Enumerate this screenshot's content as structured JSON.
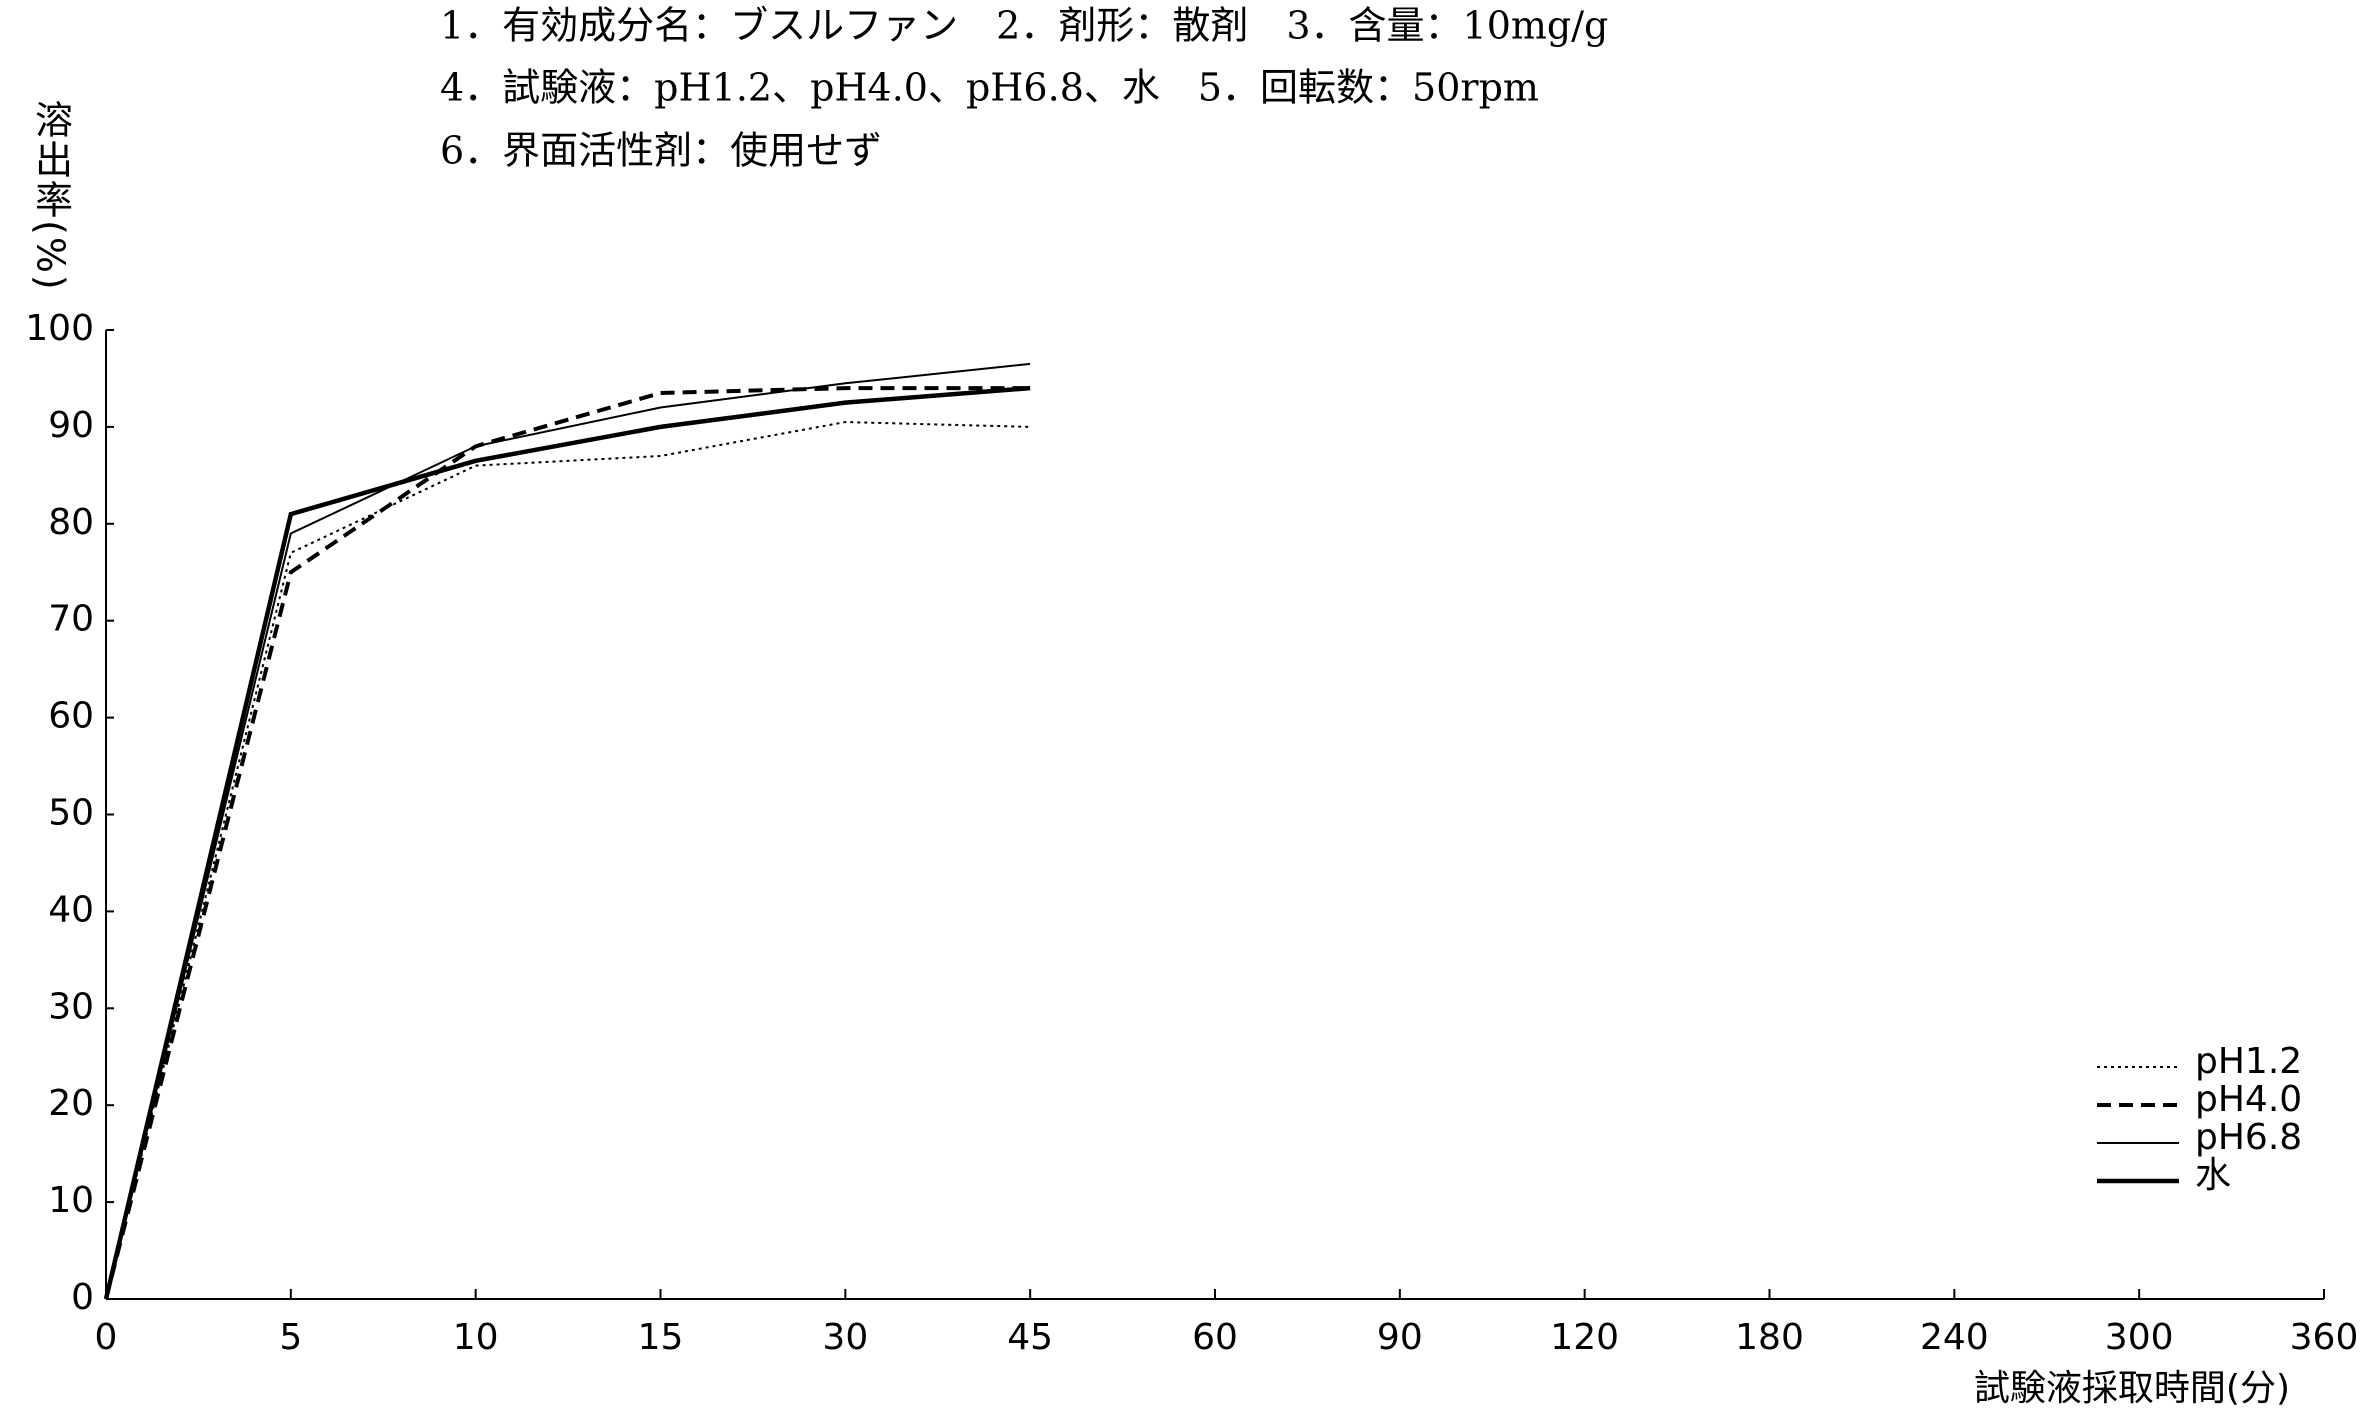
{
  "chart_data": {
    "type": "line",
    "notes": [
      "1．有効成分名：ブスルファン　2．剤形：散剤　3．含量：10mg/g",
      "4．試験液：pH1.2、pH4.0、pH6.8、水　5．回転数：50rpm",
      "6．界面活性剤：使用せず"
    ],
    "y_label": "溶出率(%)",
    "x_label": "試験液採取時間(分)",
    "categories": [
      "0",
      "5",
      "10",
      "15",
      "30",
      "45",
      "60",
      "90",
      "120",
      "180",
      "240",
      "300",
      "360"
    ],
    "series": [
      {
        "name": "pH1.2",
        "color": "#000000",
        "style": "dotted",
        "values": [
          0,
          77,
          86,
          87,
          90.5,
          90,
          null,
          null,
          null,
          null,
          null,
          null,
          null
        ]
      },
      {
        "name": "pH4.0",
        "color": "#000000",
        "style": "dashed",
        "values": [
          0,
          75,
          88,
          93.5,
          94,
          94,
          null,
          null,
          null,
          null,
          null,
          null,
          null
        ]
      },
      {
        "name": "pH6.8",
        "color": "#000000",
        "style": "thin",
        "values": [
          0,
          79,
          88,
          92,
          94.5,
          96.5,
          null,
          null,
          null,
          null,
          null,
          null,
          null
        ]
      },
      {
        "name": "水",
        "color": "#000000",
        "style": "solid",
        "values": [
          0,
          81,
          86.5,
          90,
          92.5,
          94,
          null,
          null,
          null,
          null,
          null,
          null,
          null
        ]
      }
    ],
    "ylim": [
      0,
      100
    ],
    "yticks": [
      0,
      10,
      20,
      30,
      40,
      50,
      60,
      70,
      80,
      90,
      100
    ],
    "legend": "lower right"
  }
}
